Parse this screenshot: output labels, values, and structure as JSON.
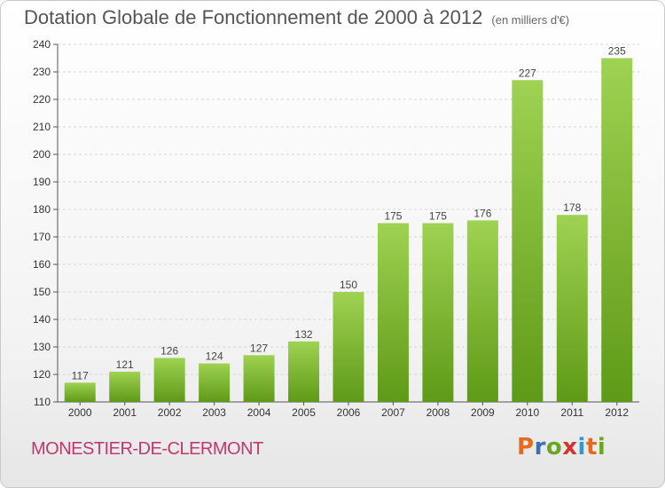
{
  "title": "Dotation Globale de Fonctionnement de 2000 à 2012",
  "unit": "(en milliers d'€)",
  "commune": "MONESTIER-DE-CLERMONT",
  "logo": {
    "text": "Proxiti",
    "colors": [
      "#e46a1e",
      "#3a6fb5",
      "#6aa624",
      "#d8322f",
      "#2e9ad0",
      "#e46a1e",
      "#6aa624"
    ]
  },
  "colors": {
    "bar_top": "#9fd252",
    "bar_bottom": "#5e9a17",
    "grid": "#d6d6d6",
    "axis_text": "#333333",
    "commune": "#c0396b"
  },
  "chart_data": {
    "type": "bar",
    "categories": [
      "2000",
      "2001",
      "2002",
      "2003",
      "2004",
      "2005",
      "2006",
      "2007",
      "2008",
      "2009",
      "2010",
      "2011",
      "2012"
    ],
    "values": [
      117,
      121,
      126,
      124,
      127,
      132,
      150,
      175,
      175,
      176,
      227,
      178,
      235
    ],
    "ylim": [
      110,
      240
    ],
    "yticks": [
      110,
      120,
      130,
      140,
      150,
      160,
      170,
      180,
      190,
      200,
      210,
      220,
      230,
      240
    ],
    "grid": true
  }
}
